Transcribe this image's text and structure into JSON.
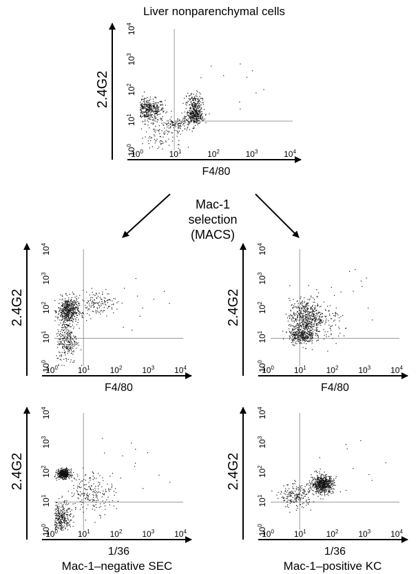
{
  "figure": {
    "title": "Liver nonparenchymal cells",
    "selection_label": [
      "Mac-1",
      "selection",
      "(MACS)"
    ],
    "bottom_captions": [
      "Mac-1–negative SEC",
      "Mac-1–positive KC"
    ]
  },
  "chart_data": [
    {
      "type": "scatter",
      "panel": "top",
      "title": "Liver nonparenchymal cells",
      "xlabel": "F4/80",
      "ylabel": "2.4G2",
      "xscale": "log",
      "yscale": "log",
      "xlim": [
        1,
        10000
      ],
      "ylim": [
        1,
        10000
      ],
      "xticks": [
        "10^0",
        "10^1",
        "10^2",
        "10^3",
        "10^4"
      ],
      "yticks": [
        "10^0",
        "10^1",
        "10^2",
        "10^3",
        "10^4"
      ],
      "quadrant_gates": {
        "x": 8,
        "y": 9
      },
      "populations": [
        {
          "center": [
            1.6,
            22
          ],
          "spread": [
            0.22,
            0.18
          ],
          "weight": 0.38
        },
        {
          "center": [
            27,
            13
          ],
          "spread": [
            0.12,
            0.12
          ],
          "weight": 0.24
        },
        {
          "center": [
            26,
            32
          ],
          "spread": [
            0.1,
            0.2
          ],
          "weight": 0.18
        },
        {
          "center": [
            9,
            7
          ],
          "spread": [
            0.2,
            0.12
          ],
          "weight": 0.1
        },
        {
          "center": [
            3,
            3
          ],
          "spread": [
            0.3,
            0.35
          ],
          "weight": 0.1
        }
      ]
    },
    {
      "type": "scatter",
      "panel": "middle-left",
      "xlabel": "F4/80",
      "ylabel": "2.4G2",
      "xscale": "log",
      "yscale": "log",
      "xlim": [
        1,
        10000
      ],
      "ylim": [
        1,
        10000
      ],
      "xticks": [
        "10^0",
        "10^1",
        "10^2",
        "10^3",
        "10^4"
      ],
      "yticks": [
        "10^0",
        "10^1",
        "10^2",
        "10^3",
        "10^4"
      ],
      "quadrant_gates": {
        "x": 8,
        "y": 9
      },
      "populations": [
        {
          "center": [
            2.6,
            80
          ],
          "spread": [
            0.16,
            0.22
          ],
          "weight": 0.55
        },
        {
          "center": [
            2.4,
            8
          ],
          "spread": [
            0.16,
            0.4
          ],
          "weight": 0.3
        },
        {
          "center": [
            20,
            150
          ],
          "spread": [
            0.3,
            0.2
          ],
          "weight": 0.15
        }
      ]
    },
    {
      "type": "scatter",
      "panel": "middle-right",
      "xlabel": "F4/80",
      "ylabel": "2.4G2",
      "xscale": "log",
      "yscale": "log",
      "xlim": [
        1,
        10000
      ],
      "ylim": [
        1,
        10000
      ],
      "xticks": [
        "10^0",
        "10^1",
        "10^2",
        "10^3",
        "10^4"
      ],
      "yticks": [
        "10^0",
        "10^1",
        "10^2",
        "10^3",
        "10^4"
      ],
      "quadrant_gates": {
        "x": 8,
        "y": 9
      },
      "populations": [
        {
          "center": [
            12,
            50
          ],
          "spread": [
            0.25,
            0.3
          ],
          "weight": 0.5
        },
        {
          "center": [
            9,
            12
          ],
          "spread": [
            0.2,
            0.15
          ],
          "weight": 0.35
        },
        {
          "center": [
            40,
            30
          ],
          "spread": [
            0.45,
            0.35
          ],
          "weight": 0.15
        }
      ]
    },
    {
      "type": "scatter",
      "panel": "bottom-left",
      "xlabel": "1/36",
      "ylabel": "2.4G2",
      "xscale": "log",
      "yscale": "log",
      "xlim": [
        1,
        10000
      ],
      "ylim": [
        1,
        10000
      ],
      "xticks": [
        "10^0",
        "10^1",
        "10^2",
        "10^3",
        "10^4"
      ],
      "yticks": [
        "10^0",
        "10^1",
        "10^2",
        "10^3",
        "10^4"
      ],
      "quadrant_gates": {
        "x": 8,
        "y": 9
      },
      "caption": "Mac-1–negative SEC",
      "populations": [
        {
          "center": [
            1.9,
            85
          ],
          "spread": [
            0.1,
            0.08
          ],
          "weight": 0.45
        },
        {
          "center": [
            1.6,
            2.2
          ],
          "spread": [
            0.15,
            0.3
          ],
          "weight": 0.35
        },
        {
          "center": [
            15,
            20
          ],
          "spread": [
            0.35,
            0.35
          ],
          "weight": 0.2
        }
      ]
    },
    {
      "type": "scatter",
      "panel": "bottom-right",
      "xlabel": "1/36",
      "ylabel": "2.4G2",
      "xscale": "log",
      "yscale": "log",
      "xlim": [
        1,
        10000
      ],
      "ylim": [
        1,
        10000
      ],
      "xticks": [
        "10^0",
        "10^1",
        "10^2",
        "10^3",
        "10^4"
      ],
      "yticks": [
        "10^0",
        "10^1",
        "10^2",
        "10^3",
        "10^4"
      ],
      "quadrant_gates": {
        "x": 8,
        "y": 9
      },
      "caption": "Mac-1–positive KC",
      "populations": [
        {
          "center": [
            40,
            38
          ],
          "spread": [
            0.17,
            0.15
          ],
          "weight": 0.75
        },
        {
          "center": [
            6,
            15
          ],
          "spread": [
            0.25,
            0.2
          ],
          "weight": 0.25
        }
      ]
    }
  ]
}
